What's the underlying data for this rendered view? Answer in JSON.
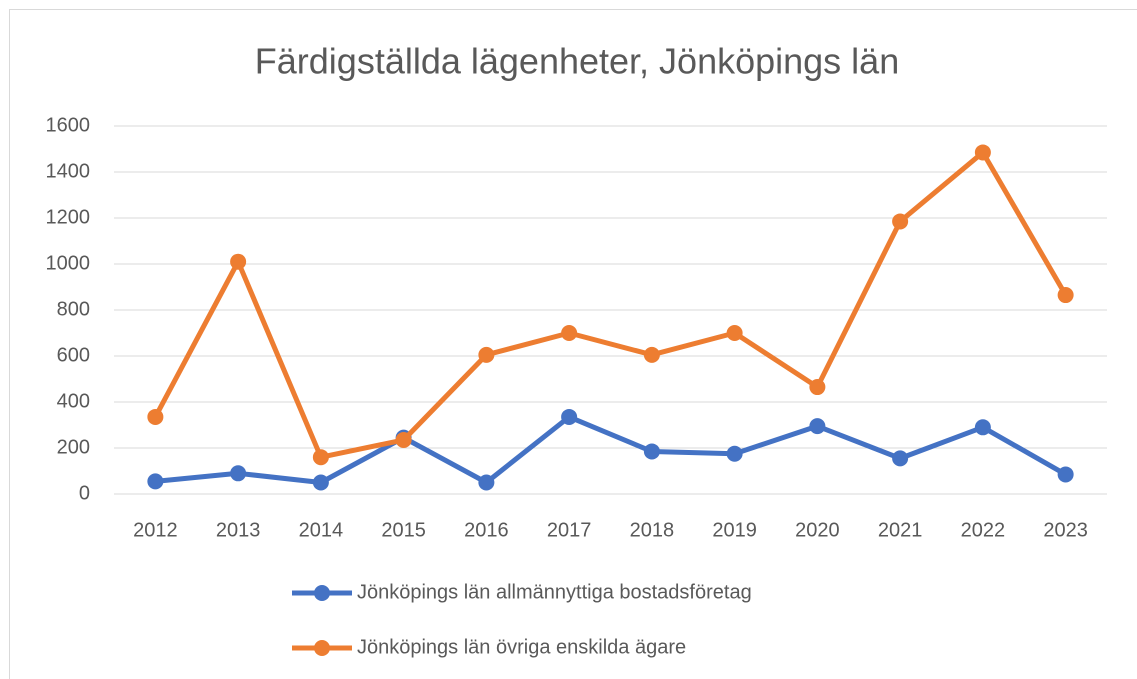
{
  "chart_data": {
    "type": "line",
    "title": "Färdigställda lägenheter, Jönköpings län",
    "categories": [
      "2012",
      "2013",
      "2014",
      "2015",
      "2016",
      "2017",
      "2018",
      "2019",
      "2020",
      "2021",
      "2022",
      "2023"
    ],
    "series": [
      {
        "name": "Jönköpings län allmännyttiga bostadsföretag",
        "color": "#4472c4",
        "values": [
          55,
          90,
          50,
          245,
          50,
          335,
          185,
          175,
          295,
          155,
          290,
          85
        ]
      },
      {
        "name": "Jönköpings län övriga enskilda ägare",
        "color": "#ed7d31",
        "values": [
          335,
          1010,
          160,
          235,
          605,
          700,
          605,
          700,
          465,
          1185,
          1485,
          865
        ]
      }
    ],
    "ylim": [
      0,
      1600
    ],
    "yticks": [
      0,
      200,
      400,
      600,
      800,
      1000,
      1200,
      1400,
      1600
    ],
    "grid": true,
    "legend": "bottom"
  }
}
